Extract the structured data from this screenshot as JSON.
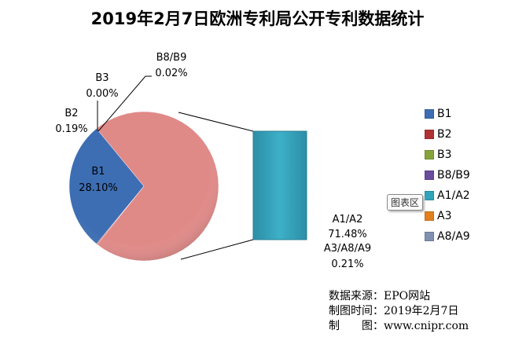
{
  "chart_data": {
    "type": "pie",
    "subtype": "bar-of-pie",
    "title": "2019年2月7日欧洲专利局公开专利数据统计",
    "slices": [
      {
        "name": "B1",
        "value": 28.1,
        "label": "28.10%",
        "color": "#3d6eb3"
      },
      {
        "name": "B2",
        "value": 0.19,
        "label": "0.19%",
        "color": "#b03232"
      },
      {
        "name": "B3",
        "value": 0.0,
        "label": "0.00%",
        "color": "#86a33a"
      },
      {
        "name": "B8/B9",
        "value": 0.02,
        "label": "0.02%",
        "color": "#6a4c9c"
      }
    ],
    "other_slice": {
      "value": 71.69,
      "color": "#e08a88"
    },
    "bar_items": [
      {
        "name": "A1/A2",
        "value": 71.48,
        "label": "71.48%",
        "color": "#31a3bb"
      },
      {
        "name": "A3/A8/A9",
        "value": 0.21,
        "label": "0.21%",
        "color": "#e08020"
      }
    ],
    "legend": {
      "placement": "right",
      "items": [
        {
          "name": "B1",
          "color": "#3d6eb3"
        },
        {
          "name": "B2",
          "color": "#b03232"
        },
        {
          "name": "B3",
          "color": "#86a33a"
        },
        {
          "name": "B8/B9",
          "color": "#6a4c9c"
        },
        {
          "name": "A1/A2",
          "color": "#31a3bb"
        },
        {
          "name": "A3",
          "color": "#e08020"
        },
        {
          "name": "A8/A9",
          "color": "#8090b0"
        }
      ]
    }
  },
  "tooltip": "图表区",
  "source": {
    "line1": "数据来源：EPO网站",
    "line2": "制图时间：2019年2月7日",
    "line3": "制　　图：www.cnipr.com"
  }
}
